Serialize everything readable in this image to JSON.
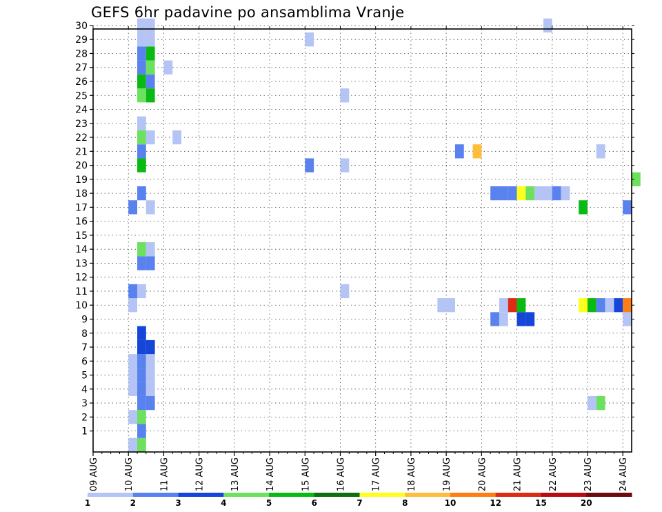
{
  "chart_data": {
    "type": "heatmap",
    "title": "GEFS 6hr padavine po ansamblima Vranje",
    "xlabel": "",
    "ylabel": "",
    "x_tick_labels": [
      "09 AUG",
      "10 AUG",
      "11 AUG",
      "12 AUG",
      "13 AUG",
      "14 AUG",
      "15 AUG",
      "16 AUG",
      "17 AUG",
      "18 AUG",
      "19 AUG",
      "20 AUG",
      "21 AUG",
      "22 AUG",
      "23 AUG",
      "24 AUG"
    ],
    "y_tick_labels": [
      "1",
      "2",
      "3",
      "4",
      "5",
      "6",
      "7",
      "8",
      "9",
      "10",
      "11",
      "12",
      "13",
      "14",
      "15",
      "16",
      "17",
      "18",
      "19",
      "20",
      "21",
      "22",
      "23",
      "24",
      "25",
      "26",
      "27",
      "28",
      "29",
      "30"
    ],
    "xlim": [
      0,
      15.25
    ],
    "ylim": [
      0,
      30
    ],
    "time_step_days": 0.25,
    "grid": "dotted",
    "legend": {
      "placement": "bottom",
      "labels": [
        "1",
        "2",
        "3",
        "4",
        "5",
        "6",
        "7",
        "8",
        "10",
        "12",
        "15",
        "20"
      ],
      "colors": [
        "#b4c4f4",
        "#5a82ee",
        "#1646d8",
        "#6ee060",
        "#0aba14",
        "#0e6e10",
        "#ffff1e",
        "#ffbd3c",
        "#ff7e14",
        "#dc2d14",
        "#b40e14",
        "#6e0a0c"
      ]
    },
    "cells": [
      {
        "member": 0,
        "x": 1.25,
        "value": 4.5
      },
      {
        "member": 0,
        "x": 1.0,
        "value": 1.5
      },
      {
        "member": 1,
        "x": 1.25,
        "value": 2.5
      },
      {
        "member": 2,
        "x": 1.0,
        "value": 1.5
      },
      {
        "member": 2,
        "x": 1.25,
        "value": 4.5
      },
      {
        "member": 3,
        "x": 1.25,
        "value": 2.5
      },
      {
        "member": 3,
        "x": 1.5,
        "value": 2.5
      },
      {
        "member": 3,
        "x": 14.0,
        "value": 1.5
      },
      {
        "member": 3,
        "x": 14.25,
        "value": 4.5
      },
      {
        "member": 4,
        "x": 1.0,
        "value": 1.5
      },
      {
        "member": 4,
        "x": 1.25,
        "value": 2.5
      },
      {
        "member": 4,
        "x": 1.5,
        "value": 1.5
      },
      {
        "member": 5,
        "x": 1.0,
        "value": 1.5
      },
      {
        "member": 5,
        "x": 1.25,
        "value": 2.5
      },
      {
        "member": 5,
        "x": 1.5,
        "value": 1.5
      },
      {
        "member": 6,
        "x": 1.0,
        "value": 1.5
      },
      {
        "member": 6,
        "x": 1.25,
        "value": 2.5
      },
      {
        "member": 6,
        "x": 1.5,
        "value": 1.5
      },
      {
        "member": 7,
        "x": 1.25,
        "value": 3.5
      },
      {
        "member": 7,
        "x": 1.5,
        "value": 3.5
      },
      {
        "member": 8,
        "x": 1.25,
        "value": 3.5
      },
      {
        "member": 9,
        "x": 11.25,
        "value": 2.5
      },
      {
        "member": 9,
        "x": 11.5,
        "value": 1.5
      },
      {
        "member": 9,
        "x": 12.0,
        "value": 3.5
      },
      {
        "member": 9,
        "x": 12.25,
        "value": 3.5
      },
      {
        "member": 9,
        "x": 15.0,
        "value": 1.5
      },
      {
        "member": 10,
        "x": 1.0,
        "value": 1.5
      },
      {
        "member": 10,
        "x": 9.75,
        "value": 1.5
      },
      {
        "member": 10,
        "x": 10.0,
        "value": 1.5
      },
      {
        "member": 10,
        "x": 11.5,
        "value": 1.5
      },
      {
        "member": 10,
        "x": 11.75,
        "value": 14.0
      },
      {
        "member": 10,
        "x": 12.0,
        "value": 5.5
      },
      {
        "member": 10,
        "x": 13.75,
        "value": 7.5
      },
      {
        "member": 10,
        "x": 14.0,
        "value": 5.5
      },
      {
        "member": 10,
        "x": 14.25,
        "value": 2.8
      },
      {
        "member": 10,
        "x": 14.5,
        "value": 1.5
      },
      {
        "member": 10,
        "x": 14.75,
        "value": 3.5
      },
      {
        "member": 10,
        "x": 15.0,
        "value": 11.0
      },
      {
        "member": 11,
        "x": 1.0,
        "value": 2.5
      },
      {
        "member": 11,
        "x": 1.25,
        "value": 1.5
      },
      {
        "member": 11,
        "x": 7.0,
        "value": 1.5
      },
      {
        "member": 13,
        "x": 1.25,
        "value": 2.5
      },
      {
        "member": 13,
        "x": 1.5,
        "value": 2.5
      },
      {
        "member": 14,
        "x": 1.25,
        "value": 4.5
      },
      {
        "member": 14,
        "x": 1.5,
        "value": 1.5
      },
      {
        "member": 17,
        "x": 1.0,
        "value": 2.5
      },
      {
        "member": 17,
        "x": 1.5,
        "value": 1.5
      },
      {
        "member": 17,
        "x": 13.75,
        "value": 5.5
      },
      {
        "member": 17,
        "x": 15.0,
        "value": 2.5
      },
      {
        "member": 18,
        "x": 1.25,
        "value": 2.8
      },
      {
        "member": 18,
        "x": 11.25,
        "value": 2.5
      },
      {
        "member": 18,
        "x": 11.5,
        "value": 2.8
      },
      {
        "member": 18,
        "x": 11.75,
        "value": 2.5
      },
      {
        "member": 18,
        "x": 12.0,
        "value": 7.5
      },
      {
        "member": 18,
        "x": 12.25,
        "value": 4.5
      },
      {
        "member": 18,
        "x": 12.5,
        "value": 1.5
      },
      {
        "member": 18,
        "x": 12.75,
        "value": 1.5
      },
      {
        "member": 18,
        "x": 13.0,
        "value": 2.8
      },
      {
        "member": 18,
        "x": 13.25,
        "value": 1.5
      },
      {
        "member": 19,
        "x": 15.25,
        "value": 4.5
      },
      {
        "member": 20,
        "x": 1.25,
        "value": 5.5
      },
      {
        "member": 20,
        "x": 6.0,
        "value": 2.5
      },
      {
        "member": 20,
        "x": 7.0,
        "value": 1.5
      },
      {
        "member": 21,
        "x": 1.25,
        "value": 2.8
      },
      {
        "member": 21,
        "x": 10.25,
        "value": 2.5
      },
      {
        "member": 21,
        "x": 10.75,
        "value": 9.0
      },
      {
        "member": 21,
        "x": 14.25,
        "value": 1.5
      },
      {
        "member": 22,
        "x": 1.25,
        "value": 4.5
      },
      {
        "member": 22,
        "x": 1.5,
        "value": 1.5
      },
      {
        "member": 22,
        "x": 2.25,
        "value": 1.5
      },
      {
        "member": 23,
        "x": 1.25,
        "value": 1.5
      },
      {
        "member": 25,
        "x": 1.25,
        "value": 4.5
      },
      {
        "member": 25,
        "x": 1.5,
        "value": 5.5
      },
      {
        "member": 25,
        "x": 7.0,
        "value": 1.5
      },
      {
        "member": 26,
        "x": 1.25,
        "value": 5.5
      },
      {
        "member": 26,
        "x": 1.5,
        "value": 2.5
      },
      {
        "member": 27,
        "x": 1.25,
        "value": 2.8
      },
      {
        "member": 27,
        "x": 1.5,
        "value": 4.5
      },
      {
        "member": 27,
        "x": 2.0,
        "value": 1.5
      },
      {
        "member": 28,
        "x": 1.25,
        "value": 2.5
      },
      {
        "member": 28,
        "x": 1.5,
        "value": 5.5
      },
      {
        "member": 29,
        "x": 1.25,
        "value": 1.5
      },
      {
        "member": 29,
        "x": 1.5,
        "value": 1.5
      },
      {
        "member": 29,
        "x": 6.0,
        "value": 1.5
      },
      {
        "member": 30,
        "x": 1.25,
        "value": 1.5
      },
      {
        "member": 30,
        "x": 1.5,
        "value": 1.5
      },
      {
        "member": 30,
        "x": 12.75,
        "value": 1.5
      }
    ]
  }
}
